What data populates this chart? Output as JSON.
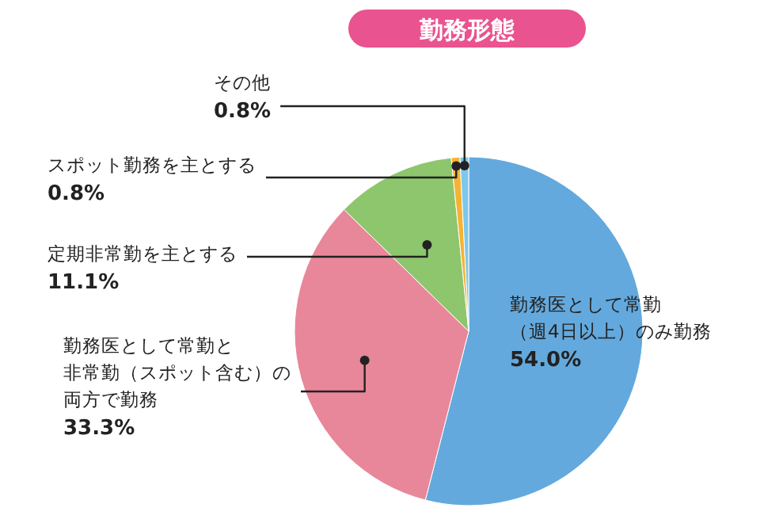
{
  "chart_data": {
    "type": "pie",
    "title": "勤務形態",
    "categories": [
      "勤務医として常勤（週4日以上）のみ勤務",
      "勤務医として常勤と非常勤（スポット含む）の両方で勤務",
      "定期非常勤を主とする",
      "スポット勤務を主とする",
      "その他"
    ],
    "values": [
      54.0,
      33.3,
      11.1,
      0.8,
      0.8
    ],
    "value_labels": [
      "54.0%",
      "33.3%",
      "11.1%",
      "0.8%",
      "0.8%"
    ],
    "colors": [
      "#63a9dd",
      "#e8879a",
      "#8dc66d",
      "#f5b335",
      "#7cc8ea"
    ],
    "legend": false
  }
}
